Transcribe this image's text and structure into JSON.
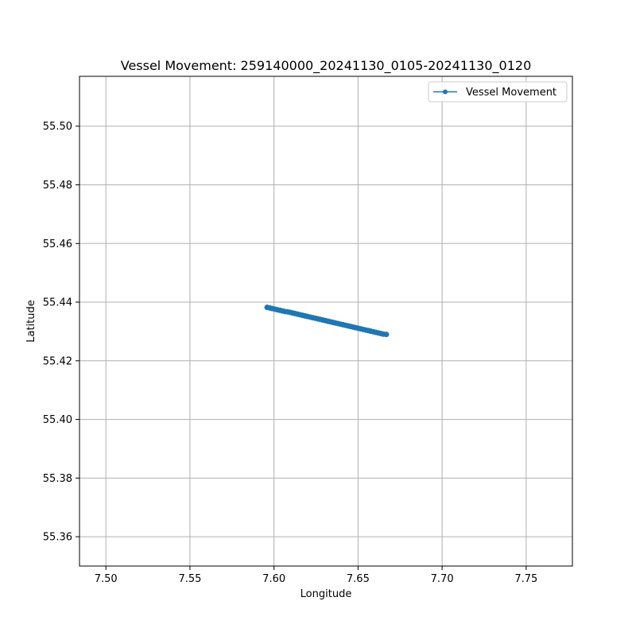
{
  "chart_data": {
    "type": "line",
    "title": "Vessel Movement: 259140000_20241130_0105-20241130_0120",
    "xlabel": "Longitude",
    "ylabel": "Latitude",
    "xlim": [
      7.4843,
      7.7775
    ],
    "ylim": [
      55.35,
      55.517
    ],
    "xticks": [
      7.5,
      7.55,
      7.6,
      7.65,
      7.7,
      7.75
    ],
    "xtick_labels": [
      "7.50",
      "7.55",
      "7.60",
      "7.65",
      "7.70",
      "7.75"
    ],
    "yticks": [
      55.36,
      55.38,
      55.4,
      55.42,
      55.44,
      55.46,
      55.48,
      55.5
    ],
    "ytick_labels": [
      "55.36",
      "55.38",
      "55.40",
      "55.42",
      "55.44",
      "55.46",
      "55.48",
      "55.50"
    ],
    "grid": true,
    "legend_position": "upper right",
    "series": [
      {
        "name": "Vessel Movement",
        "color": "#1f77b4",
        "marker": "circle",
        "x": [
          7.5959,
          7.5975,
          7.599,
          7.6005,
          7.602,
          7.6035,
          7.605,
          7.6065,
          7.608,
          7.6095,
          7.611,
          7.6125,
          7.614,
          7.6155,
          7.617,
          7.6185,
          7.62,
          7.6215,
          7.623,
          7.6245,
          7.626,
          7.6275,
          7.629,
          7.6305,
          7.632,
          7.6335,
          7.635,
          7.6365,
          7.638,
          7.6395,
          7.641,
          7.6425,
          7.644,
          7.6455,
          7.647,
          7.6485,
          7.65,
          7.6515,
          7.653,
          7.6545,
          7.656,
          7.6575,
          7.659,
          7.6605,
          7.662,
          7.6635,
          7.665,
          7.6668
        ],
        "y": [
          55.4382,
          55.438,
          55.4378,
          55.4376,
          55.4374,
          55.4372,
          55.437,
          55.4368,
          55.4367,
          55.4365,
          55.4363,
          55.4361,
          55.4359,
          55.4357,
          55.4355,
          55.4353,
          55.4351,
          55.4349,
          55.4347,
          55.4345,
          55.4343,
          55.4341,
          55.4339,
          55.4337,
          55.4335,
          55.4333,
          55.4331,
          55.4329,
          55.4327,
          55.4325,
          55.4323,
          55.4321,
          55.4319,
          55.4317,
          55.4315,
          55.4313,
          55.4311,
          55.4309,
          55.4307,
          55.4305,
          55.4303,
          55.4301,
          55.4299,
          55.4297,
          55.4295,
          55.4293,
          55.4291,
          55.429
        ]
      }
    ]
  }
}
